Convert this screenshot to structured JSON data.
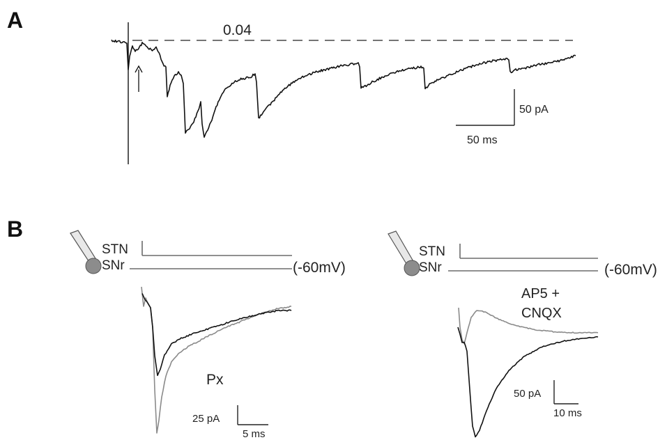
{
  "panels": {
    "a": {
      "label": "A",
      "threshold_label": "0.04",
      "scalebar_amp": "50 pA",
      "scalebar_time": "50 ms"
    },
    "b": {
      "label": "B",
      "left": {
        "stn_label": "STN",
        "snr_label": "SNr",
        "holding": "(-60mV)",
        "condition_label": "Px",
        "scalebar_amp": "25 pA",
        "scalebar_time": "5 ms"
      },
      "right": {
        "stn_label": "STN",
        "snr_label": "SNr",
        "holding": "(-60mV)",
        "condition_line1": "AP5 +",
        "condition_line2": "CNQX",
        "scalebar_amp": "50 pA",
        "scalebar_time": "10 ms"
      }
    }
  }
}
